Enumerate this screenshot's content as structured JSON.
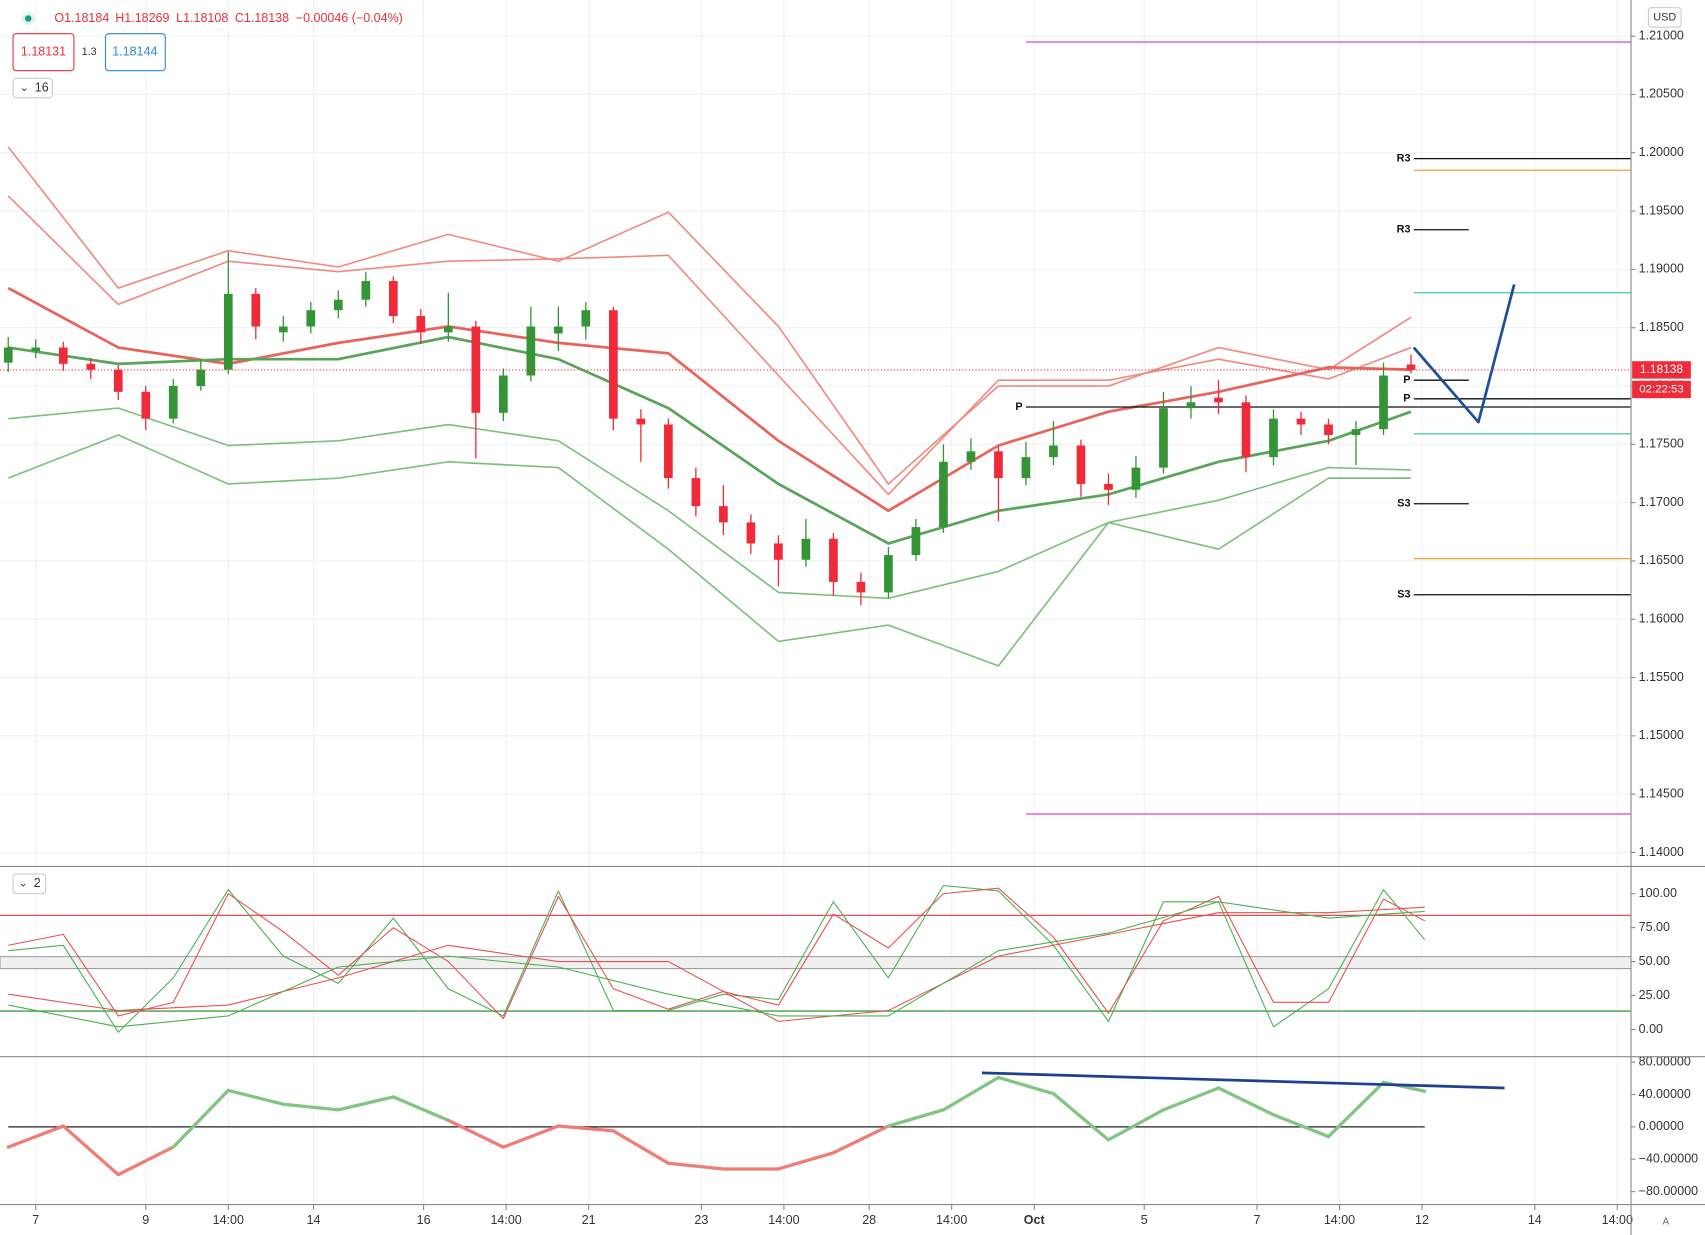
{
  "ui": {
    "ohlc": [
      "O1.18184",
      "H1.18269",
      "L1.18108",
      "C1.18138",
      "−0.00046 (−0.04%)"
    ],
    "sell": "1.18131",
    "spread": "1.3",
    "buy": "1.18144",
    "indicator_count": "16",
    "currency": "USD",
    "panel2_count": "2",
    "scale_mode": "A"
  },
  "chart_data": [
    {
      "type": "candlestick",
      "xlim": [
        -0.3,
        59
      ],
      "ylim": [
        1.1388,
        1.2131
      ],
      "grid": true,
      "up_color": "#359435",
      "down_color": "#ef2b3a",
      "yticks": [
        {
          "value": 1.21,
          "label": "1.21000"
        },
        {
          "value": 1.205,
          "label": "1.20500"
        },
        {
          "value": 1.2,
          "label": "1.20000"
        },
        {
          "value": 1.195,
          "label": "1.19500"
        },
        {
          "value": 1.19,
          "label": "1.19000"
        },
        {
          "value": 1.185,
          "label": "1.18500"
        },
        {
          "value": 1.18,
          "label": "1.18000"
        },
        {
          "value": 1.175,
          "label": "1.17500"
        },
        {
          "value": 1.17,
          "label": "1.17000"
        },
        {
          "value": 1.165,
          "label": "1.16500"
        },
        {
          "value": 1.16,
          "label": "1.16000"
        },
        {
          "value": 1.155,
          "label": "1.15500"
        },
        {
          "value": 1.15,
          "label": "1.15000"
        },
        {
          "value": 1.145,
          "label": "1.14500"
        },
        {
          "value": 1.14,
          "label": "1.14000"
        }
      ],
      "open": [
        1.182,
        1.183,
        1.1833,
        1.1819,
        1.1814,
        1.1795,
        1.1772,
        1.18,
        1.1814,
        1.1879,
        1.1846,
        1.1851,
        1.1865,
        1.1874,
        1.189,
        1.186,
        1.1846,
        1.1851,
        1.1777,
        1.1809,
        1.1845,
        1.1851,
        1.1865,
        1.1772,
        1.1767,
        1.1721,
        1.1697,
        1.1683,
        1.1665,
        1.1651,
        1.1669,
        1.1632,
        1.1623,
        1.1655,
        1.1679,
        1.1735,
        1.1744,
        1.1721,
        1.1739,
        1.1749,
        1.1716,
        1.1711,
        1.173,
        1.1781,
        1.179,
        1.1786,
        1.1739,
        1.1772,
        1.1767,
        1.1758,
        1.1763,
        1.18184
      ],
      "high": [
        1.1842,
        1.184,
        1.1838,
        1.1824,
        1.1818,
        1.18,
        1.1806,
        1.1822,
        1.1915,
        1.1884,
        1.186,
        1.1872,
        1.1882,
        1.1898,
        1.1894,
        1.1866,
        1.188,
        1.1856,
        1.1815,
        1.1868,
        1.1868,
        1.1872,
        1.1868,
        1.178,
        1.1772,
        1.173,
        1.1715,
        1.169,
        1.1672,
        1.1686,
        1.1674,
        1.164,
        1.1662,
        1.1686,
        1.175,
        1.1755,
        1.1748,
        1.1752,
        1.177,
        1.1754,
        1.1725,
        1.174,
        1.1795,
        1.18,
        1.1805,
        1.1792,
        1.178,
        1.1778,
        1.1772,
        1.177,
        1.182,
        1.18269
      ],
      "low": [
        1.1812,
        1.1824,
        1.1813,
        1.1806,
        1.1788,
        1.1762,
        1.1768,
        1.1796,
        1.181,
        1.184,
        1.1838,
        1.1845,
        1.1858,
        1.1868,
        1.1854,
        1.1836,
        1.1838,
        1.1738,
        1.177,
        1.1804,
        1.183,
        1.184,
        1.1762,
        1.1735,
        1.1712,
        1.1688,
        1.1672,
        1.1656,
        1.1628,
        1.1645,
        1.162,
        1.1612,
        1.1618,
        1.165,
        1.1674,
        1.1728,
        1.1684,
        1.1715,
        1.1732,
        1.1705,
        1.1698,
        1.1704,
        1.1725,
        1.1772,
        1.1776,
        1.1726,
        1.1732,
        1.1758,
        1.175,
        1.1732,
        1.1758,
        1.18108
      ],
      "close": [
        1.1833,
        1.1833,
        1.1819,
        1.1814,
        1.1795,
        1.1772,
        1.18,
        1.1814,
        1.1879,
        1.1851,
        1.1851,
        1.1865,
        1.1874,
        1.189,
        1.186,
        1.1846,
        1.1851,
        1.1777,
        1.1809,
        1.1851,
        1.1851,
        1.1865,
        1.1772,
        1.1767,
        1.1721,
        1.1697,
        1.1683,
        1.1665,
        1.1651,
        1.1669,
        1.1632,
        1.1623,
        1.1655,
        1.1679,
        1.1735,
        1.1744,
        1.1721,
        1.1739,
        1.1749,
        1.1716,
        1.1711,
        1.173,
        1.1781,
        1.1786,
        1.1786,
        1.1739,
        1.1772,
        1.1767,
        1.1758,
        1.1763,
        1.1809,
        1.18138
      ],
      "series": [
        {
          "color": "#f08a80",
          "line_width": 1.5,
          "x": [
            0,
            4,
            8,
            12,
            16,
            20,
            24,
            28,
            32,
            36,
            40,
            44,
            48,
            51
          ],
          "values": [
            1.2005,
            1.1884,
            1.1916,
            1.1902,
            1.193,
            1.1907,
            1.1949,
            1.1851,
            1.1716,
            1.18,
            1.18,
            1.1833,
            1.1814,
            1.1859
          ]
        },
        {
          "color": "#f08a80",
          "line_width": 1.5,
          "x": [
            0,
            4,
            8,
            12,
            16,
            20,
            24,
            28,
            32,
            36,
            40,
            44,
            48,
            51
          ],
          "values": [
            1.1963,
            1.187,
            1.1907,
            1.1898,
            1.1907,
            1.1909,
            1.1912,
            1.1809,
            1.1707,
            1.1805,
            1.1805,
            1.1823,
            1.1806,
            1.1833
          ]
        },
        {
          "color": "#e8645a",
          "line_width": 2.5,
          "x": [
            0,
            4,
            8,
            12,
            16,
            20,
            24,
            28,
            32,
            36,
            40,
            44,
            48,
            51
          ],
          "values": [
            1.1884,
            1.1833,
            1.1819,
            1.1837,
            1.1851,
            1.1837,
            1.1828,
            1.1753,
            1.1693,
            1.1749,
            1.1778,
            1.1795,
            1.1816,
            1.1814
          ]
        },
        {
          "color": "#5aa35a",
          "line_width": 2.5,
          "x": [
            0,
            4,
            8,
            12,
            16,
            20,
            24,
            28,
            32,
            36,
            40,
            44,
            48,
            51
          ],
          "values": [
            1.1833,
            1.1819,
            1.1823,
            1.1823,
            1.1842,
            1.1823,
            1.1781,
            1.1716,
            1.1665,
            1.1693,
            1.1707,
            1.1735,
            1.1753,
            1.1778
          ]
        },
        {
          "color": "#7cc07c",
          "line_width": 1.5,
          "x": [
            0,
            4,
            8,
            12,
            16,
            20,
            24,
            28,
            32,
            36,
            40,
            44,
            48,
            51
          ],
          "values": [
            1.1772,
            1.1781,
            1.1749,
            1.1753,
            1.1767,
            1.1753,
            1.1693,
            1.1623,
            1.1618,
            1.1641,
            1.1683,
            1.1702,
            1.173,
            1.1728
          ]
        },
        {
          "color": "#7cc07c",
          "line_width": 1.5,
          "x": [
            0,
            4,
            8,
            12,
            16,
            20,
            24,
            28,
            32,
            36,
            40,
            44,
            48,
            51
          ],
          "values": [
            1.1721,
            1.1758,
            1.1716,
            1.1721,
            1.1735,
            1.173,
            1.166,
            1.1581,
            1.1595,
            1.156,
            1.1683,
            1.166,
            1.1721,
            1.1721
          ]
        }
      ],
      "levels": [
        {
          "value": 1.2095,
          "from": 37,
          "to": 59,
          "color": "#e040e0"
        },
        {
          "value": 1.1433,
          "from": 37,
          "to": 59,
          "color": "#e040e0"
        },
        {
          "value": 1.1995,
          "from": 51.1,
          "to": 59,
          "color": "#111111",
          "label": "R3"
        },
        {
          "value": 1.1934,
          "from": 51.1,
          "to": 53.1,
          "color": "#111111",
          "label": "R3"
        },
        {
          "value": 1.1985,
          "from": 51.1,
          "to": 59,
          "color": "#f0a030"
        },
        {
          "value": 1.1652,
          "from": 51.1,
          "to": 59,
          "color": "#f0a030"
        },
        {
          "value": 1.188,
          "from": 51.1,
          "to": 59,
          "color": "#50d0a0"
        },
        {
          "value": 1.1759,
          "from": 51.1,
          "to": 59,
          "color": "#50d0a0"
        },
        {
          "value": 1.1782,
          "from": 37,
          "to": 59,
          "color": "#111111",
          "label": "P"
        },
        {
          "value": 1.1805,
          "from": 51.1,
          "to": 53.1,
          "color": "#111111",
          "label": "P"
        },
        {
          "value": 1.1789,
          "from": 51.1,
          "to": 59,
          "color": "#111111",
          "label": "P"
        },
        {
          "value": 1.1699,
          "from": 51.1,
          "to": 53.1,
          "color": "#111111",
          "label": "S3"
        },
        {
          "value": 1.1621,
          "from": 51.1,
          "to": 59,
          "color": "#111111",
          "label": "S3"
        }
      ],
      "drawing": {
        "x": [
          51.1,
          53.45,
          54.75
        ],
        "values": [
          1.1833,
          1.1769,
          1.1887
        ],
        "color": "#1f4e9c"
      },
      "last_price": {
        "value": 1.18138,
        "label": "1.18138",
        "countdown": "02:22:53",
        "color": "#ef2b3a"
      }
    },
    {
      "type": "line",
      "xlim": [
        -0.3,
        59
      ],
      "ylim": [
        -20,
        118.4
      ],
      "yticks": [
        {
          "value": 100,
          "label": "100.00"
        },
        {
          "value": 75,
          "label": "75.00"
        },
        {
          "value": 50,
          "label": "50.00"
        },
        {
          "value": 25,
          "label": "25.00"
        },
        {
          "value": 0,
          "label": "0.00"
        }
      ],
      "band": {
        "from": 44.8,
        "to": 53.6,
        "color": "#f0f0f0"
      },
      "levels": [
        {
          "value": 84,
          "color": "#e05050"
        },
        {
          "value": 13.6,
          "color": "#40a040"
        }
      ],
      "series": [
        {
          "color": "#4caf50",
          "line_width": 1,
          "x": [
            0,
            2,
            4,
            6,
            8,
            10,
            12,
            14,
            16,
            18,
            20,
            22,
            24,
            26,
            28,
            30,
            32,
            34,
            36,
            38,
            40,
            42,
            44,
            46,
            48,
            50,
            51.5
          ],
          "values": [
            58,
            62,
            -2,
            38,
            103,
            54,
            34,
            82,
            30,
            10,
            102,
            14,
            14,
            26,
            22,
            94,
            38,
            106,
            102,
            62,
            6,
            94,
            94,
            2,
            30,
            103,
            66
          ]
        },
        {
          "color": "#e85050",
          "line_width": 1,
          "x": [
            0,
            2,
            4,
            6,
            8,
            10,
            12,
            14,
            16,
            18,
            20,
            22,
            24,
            26,
            28,
            30,
            32,
            34,
            36,
            38,
            40,
            42,
            44,
            46,
            48,
            50,
            51.5
          ],
          "values": [
            62,
            70,
            10,
            20,
            100,
            72,
            40,
            75,
            50,
            8,
            98,
            30,
            15,
            28,
            18,
            85,
            60,
            100,
            104,
            68,
            12,
            80,
            98,
            20,
            20,
            96,
            80
          ]
        },
        {
          "color": "#e85050",
          "line_width": 1,
          "x": [
            0,
            4,
            8,
            12,
            16,
            20,
            24,
            28,
            32,
            36,
            40,
            44,
            48,
            51.5
          ],
          "values": [
            26,
            14,
            18,
            38,
            62,
            50,
            50,
            6,
            14,
            54,
            70,
            86,
            86,
            90
          ]
        },
        {
          "color": "#4caf50",
          "line_width": 1,
          "x": [
            0,
            4,
            8,
            12,
            16,
            20,
            24,
            28,
            32,
            36,
            40,
            44,
            48,
            51.5
          ],
          "values": [
            18,
            2,
            10,
            46,
            54,
            46,
            26,
            10,
            10,
            58,
            71,
            94,
            82,
            87
          ]
        }
      ]
    },
    {
      "type": "momentum",
      "xlim": [
        -0.3,
        59
      ],
      "ylim": [
        -96,
        84
      ],
      "yticks": [
        {
          "value": 80,
          "label": "80.00000"
        },
        {
          "value": 40,
          "label": "40.00000"
        },
        {
          "value": 0,
          "label": "0.00000"
        },
        {
          "value": -40,
          "label": "−40.00000"
        },
        {
          "value": -80,
          "label": "−80.00000"
        }
      ],
      "pos_color": "#82c482",
      "neg_color": "#ee7d75",
      "x": [
        0,
        2,
        4,
        6,
        8,
        10,
        12,
        14,
        16,
        18,
        20,
        22,
        24,
        26,
        28,
        30,
        32,
        34,
        36,
        38,
        40,
        42,
        44,
        46,
        48,
        50,
        51.5
      ],
      "values": [
        -25,
        1,
        -59,
        -25,
        45,
        28,
        21,
        37,
        8,
        -25,
        1,
        -5,
        -45,
        -52,
        -52,
        -32,
        1,
        21,
        61,
        41,
        -16,
        21,
        48,
        15,
        -12,
        55,
        44
      ],
      "levels": [
        {
          "value": 0,
          "from": 0,
          "to": 51.5,
          "color": "#222222"
        }
      ],
      "drawing": {
        "x": [
          35.4,
          54.4
        ],
        "values": [
          66.7,
          48
        ],
        "color": "#1f3f8f"
      },
      "xticks": [
        {
          "value": 1,
          "label": "7"
        },
        {
          "value": 5,
          "label": "9"
        },
        {
          "value": 8,
          "label": "14:00"
        },
        {
          "value": 11.1,
          "label": "14"
        },
        {
          "value": 15.1,
          "label": "16"
        },
        {
          "value": 18.1,
          "label": "14:00"
        },
        {
          "value": 21.1,
          "label": "21"
        },
        {
          "value": 25.2,
          "label": "23"
        },
        {
          "value": 28.2,
          "label": "14:00"
        },
        {
          "value": 31.3,
          "label": "28"
        },
        {
          "value": 34.3,
          "label": "14:00"
        },
        {
          "value": 37.3,
          "label": "Oct"
        },
        {
          "value": 41.3,
          "label": "5"
        },
        {
          "value": 45.4,
          "label": "7"
        },
        {
          "value": 48.4,
          "label": "14:00"
        },
        {
          "value": 51.4,
          "label": "12"
        },
        {
          "value": 55.5,
          "label": "14"
        },
        {
          "value": 58.5,
          "label": "14:00"
        }
      ]
    }
  ]
}
